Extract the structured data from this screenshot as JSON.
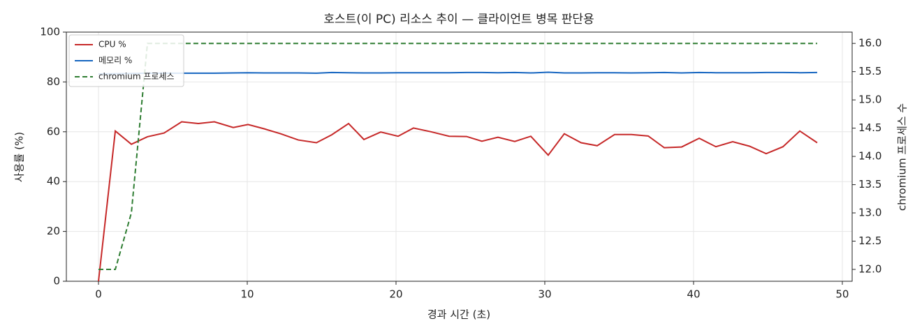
{
  "chart_data": {
    "type": "line",
    "title": "호스트(이 PC) 리소스 추이 — 클라이언트 병목 판단용",
    "x_label": "경과 시간 (초)",
    "y_label": "사용률 (%)",
    "y2_label": "chromium 프로세스 수",
    "x": [
      0,
      1.13,
      2.21,
      3.29,
      4.41,
      5.59,
      6.71,
      7.79,
      9.06,
      10.05,
      11.13,
      12.25,
      13.43,
      14.65,
      15.68,
      16.81,
      17.84,
      18.97,
      20.14,
      21.17,
      22.35,
      23.57,
      24.74,
      25.77,
      26.85,
      27.98,
      29.06,
      30.23,
      31.31,
      32.44,
      33.52,
      34.69,
      35.82,
      36.95,
      38.03,
      39.2,
      40.38,
      41.5,
      42.63,
      43.76,
      44.88,
      46.01,
      47.14,
      48.31
    ],
    "series": [
      {
        "name": "CPU %",
        "color": "#c62828",
        "linestyle": "solid",
        "values": [
          0,
          60.3,
          55,
          58,
          59.5,
          64,
          63.3,
          64,
          61.7,
          62.9,
          61.2,
          59.2,
          56.7,
          55.6,
          58.8,
          63.3,
          56.9,
          59.9,
          58.2,
          61.5,
          60,
          58.2,
          58.1,
          56.2,
          57.8,
          56.1,
          58.2,
          50.6,
          59.2,
          55.6,
          54.4,
          58.9,
          58.9,
          58.3,
          53.6,
          53.9,
          57.4,
          54,
          56,
          54.2,
          51.2,
          54,
          60.3,
          55.6
        ]
      },
      {
        "name": "메모리 %",
        "color": "#1565c0",
        "linestyle": "solid",
        "values": [
          83.2,
          83.3,
          83.4,
          83.5,
          83.5,
          83.5,
          83.5,
          83.5,
          83.6,
          83.7,
          83.6,
          83.6,
          83.6,
          83.5,
          83.8,
          83.7,
          83.6,
          83.6,
          83.7,
          83.7,
          83.7,
          83.7,
          83.8,
          83.8,
          83.7,
          83.8,
          83.6,
          83.9,
          83.6,
          83.6,
          83.7,
          83.7,
          83.6,
          83.7,
          83.8,
          83.6,
          83.8,
          83.7,
          83.7,
          83.7,
          83.8,
          83.8,
          83.7,
          83.8
        ]
      },
      {
        "name": "chromium 프로세스",
        "color": "#2e7d32",
        "linestyle": "dashed",
        "axis": "y2",
        "values": [
          12,
          12,
          13,
          16,
          16,
          16,
          16,
          16,
          16,
          16,
          16,
          16,
          16,
          16,
          16,
          16,
          16,
          16,
          16,
          16,
          16,
          16,
          16,
          16,
          16,
          16,
          16,
          16,
          16,
          16,
          16,
          16,
          16,
          16,
          16,
          16,
          16,
          16,
          16,
          16,
          16,
          16,
          16,
          16
        ]
      }
    ],
    "xlim": [
      -2.16,
      50.66
    ],
    "xticks": [
      0,
      10,
      20,
      30,
      40,
      50
    ],
    "ylim": [
      0,
      100
    ],
    "yticks": [
      0,
      20,
      40,
      60,
      80,
      100
    ],
    "y2lim": [
      11.79,
      16.2
    ],
    "y2ticks": [
      {
        "value": 12,
        "label": "12.0"
      },
      12.5,
      {
        "value": 13,
        "label": "13.0"
      },
      13.5,
      {
        "value": 14,
        "label": "14.0"
      },
      14.5,
      {
        "value": 15,
        "label": "15.0"
      },
      15.5,
      {
        "value": 16,
        "label": "16.0"
      }
    ],
    "grid": true,
    "legend": "upper-left"
  }
}
